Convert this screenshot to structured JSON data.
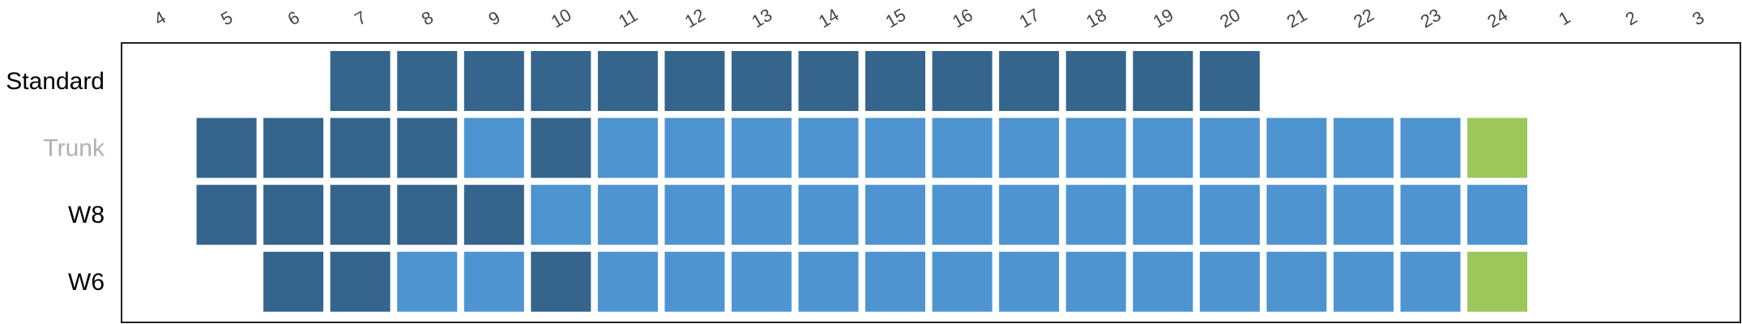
{
  "chart_data": {
    "type": "heatmap",
    "x_categories": [
      "4",
      "5",
      "6",
      "7",
      "8",
      "9",
      "10",
      "11",
      "12",
      "13",
      "14",
      "15",
      "16",
      "17",
      "18",
      "19",
      "20",
      "21",
      "22",
      "23",
      "24",
      "1",
      "2",
      "3"
    ],
    "rows": [
      {
        "label": "Standard",
        "label_color": "#000000",
        "cells": [
          null,
          null,
          null,
          "dark",
          "dark",
          "dark",
          "dark",
          "dark",
          "dark",
          "dark",
          "dark",
          "dark",
          "dark",
          "dark",
          "dark",
          "dark",
          "dark",
          null,
          null,
          null,
          null,
          null,
          null,
          null
        ]
      },
      {
        "label": "Trunk",
        "label_color": "#b0b0b0",
        "cells": [
          null,
          "dark",
          "dark",
          "dark",
          "dark",
          "light",
          "dark",
          "light",
          "light",
          "light",
          "light",
          "light",
          "light",
          "light",
          "light",
          "light",
          "light",
          "light",
          "light",
          "light",
          "green",
          null,
          null,
          null
        ]
      },
      {
        "label": "W8",
        "label_color": "#000000",
        "cells": [
          null,
          "dark",
          "dark",
          "dark",
          "dark",
          "dark",
          "light",
          "light",
          "light",
          "light",
          "light",
          "light",
          "light",
          "light",
          "light",
          "light",
          "light",
          "light",
          "light",
          "light",
          "light",
          null,
          null,
          null
        ]
      },
      {
        "label": "W6",
        "label_color": "#000000",
        "cells": [
          null,
          null,
          "dark",
          "dark",
          "light",
          "light",
          "dark",
          "light",
          "light",
          "light",
          "light",
          "light",
          "light",
          "light",
          "light",
          "light",
          "light",
          "light",
          "light",
          "light",
          "green",
          null,
          null,
          null
        ]
      }
    ],
    "colors": {
      "dark": "#35658c",
      "light": "#4d94d0",
      "green": "#9dc75b"
    },
    "grid": false,
    "legend": "none"
  }
}
